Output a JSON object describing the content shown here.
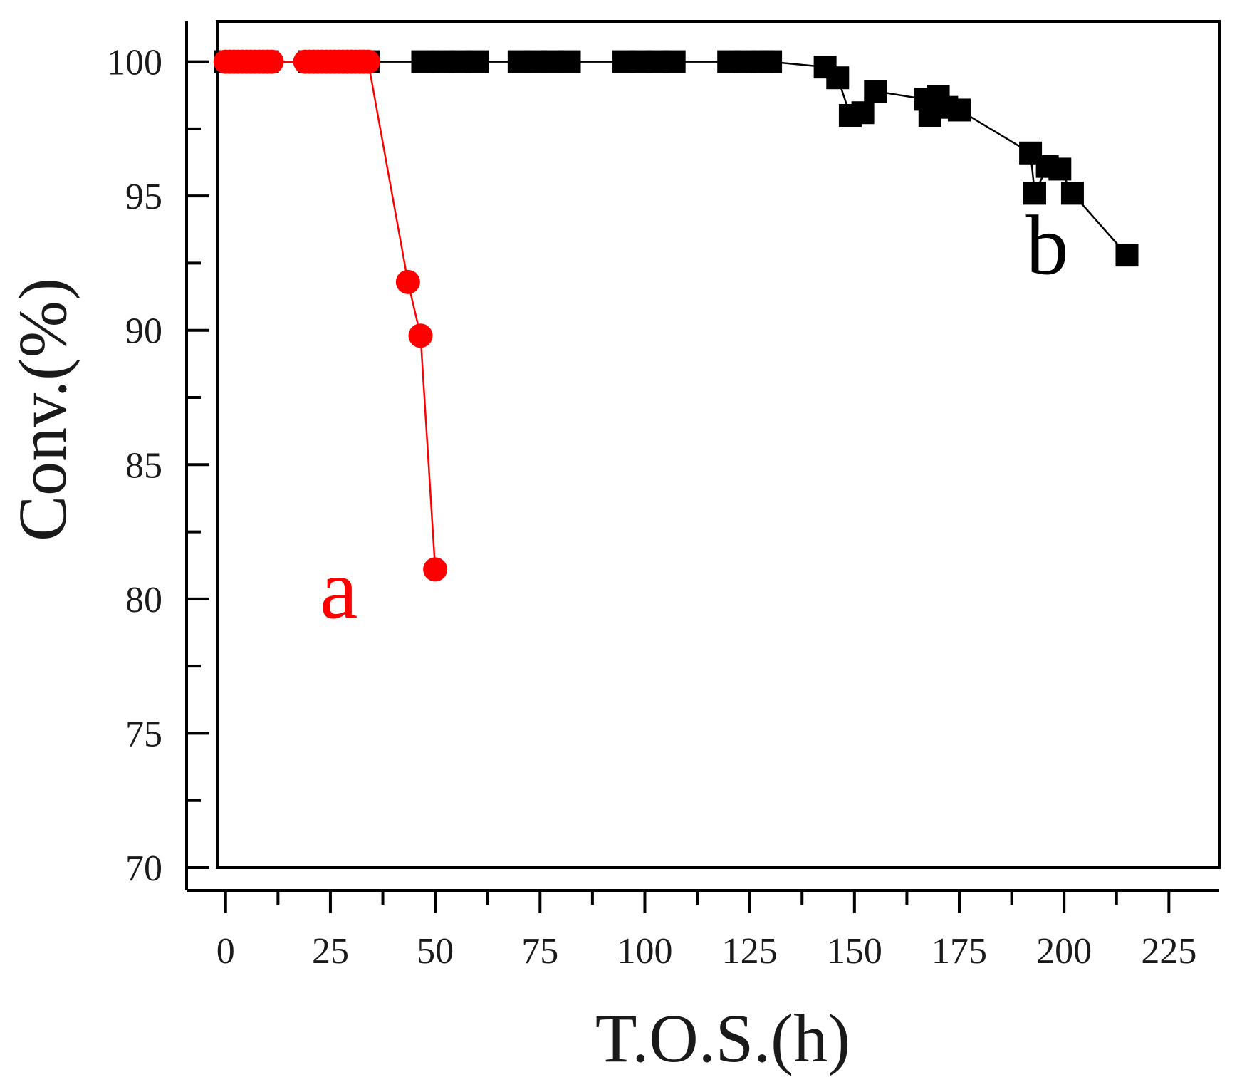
{
  "chart_data": {
    "type": "scatter",
    "xlabel": "T.O.S.(h)",
    "ylabel": "Conv.(%)",
    "xlim": [
      -2,
      237
    ],
    "ylim": [
      70,
      101.5
    ],
    "xticks": [
      0,
      25,
      50,
      75,
      100,
      125,
      150,
      175,
      200,
      225
    ],
    "xtick_labels": [
      "0",
      "25",
      "50",
      "75",
      "100",
      "125",
      "150",
      "175",
      "200",
      "225"
    ],
    "yticks": [
      70,
      75,
      80,
      85,
      90,
      95,
      100
    ],
    "ytick_labels": [
      "70",
      "75",
      "80",
      "85",
      "90",
      "95",
      "100"
    ],
    "grid": false,
    "series": [
      {
        "name": "b",
        "color": "#000000",
        "marker": "square",
        "line": "solid",
        "points": [
          [
            0,
            100
          ],
          [
            2,
            100
          ],
          [
            4,
            100
          ],
          [
            6,
            100
          ],
          [
            8,
            100
          ],
          [
            10,
            100
          ],
          [
            20,
            100
          ],
          [
            22,
            100
          ],
          [
            24,
            100
          ],
          [
            26,
            100
          ],
          [
            28,
            100
          ],
          [
            30,
            100
          ],
          [
            32,
            100
          ],
          [
            34,
            100
          ],
          [
            47,
            100
          ],
          [
            52,
            100
          ],
          [
            56,
            100
          ],
          [
            60,
            100
          ],
          [
            70,
            100
          ],
          [
            74,
            100
          ],
          [
            78,
            100
          ],
          [
            82,
            100
          ],
          [
            95,
            100
          ],
          [
            99,
            100
          ],
          [
            103,
            100
          ],
          [
            107,
            100
          ],
          [
            120,
            100
          ],
          [
            124,
            100
          ],
          [
            128,
            100
          ],
          [
            130,
            100
          ],
          [
            143,
            99.8
          ],
          [
            146,
            99.4
          ],
          [
            149,
            98
          ],
          [
            152,
            98.1
          ],
          [
            155,
            98.9
          ],
          [
            167,
            98.6
          ],
          [
            168,
            98
          ],
          [
            170,
            98.7
          ],
          [
            172,
            98.3
          ],
          [
            175,
            98.2
          ],
          [
            192,
            96.6
          ],
          [
            193,
            95.1
          ],
          [
            196,
            96.1
          ],
          [
            199,
            96
          ],
          [
            202,
            95.1
          ],
          [
            215,
            92.8
          ]
        ]
      },
      {
        "name": "a",
        "color": "#ff0000",
        "marker": "circle",
        "line": "solid",
        "points": [
          [
            0,
            100
          ],
          [
            1,
            100
          ],
          [
            2,
            100
          ],
          [
            3,
            100
          ],
          [
            4,
            100
          ],
          [
            5,
            100
          ],
          [
            6,
            100
          ],
          [
            7,
            100
          ],
          [
            8,
            100
          ],
          [
            9,
            100
          ],
          [
            10,
            100
          ],
          [
            11,
            100
          ],
          [
            19,
            100
          ],
          [
            20,
            100
          ],
          [
            21,
            100
          ],
          [
            22,
            100
          ],
          [
            23,
            100
          ],
          [
            24,
            100
          ],
          [
            25,
            100
          ],
          [
            26,
            100
          ],
          [
            27,
            100
          ],
          [
            28,
            100
          ],
          [
            29,
            100
          ],
          [
            30,
            100
          ],
          [
            31,
            100
          ],
          [
            32,
            100
          ],
          [
            33,
            100
          ],
          [
            34,
            100
          ],
          [
            43.5,
            91.8
          ],
          [
            46.5,
            89.8
          ],
          [
            50,
            81.1
          ]
        ]
      }
    ],
    "annotations": [
      {
        "text": "a",
        "x": 27,
        "y": 79.3,
        "color": "#ff0000"
      },
      {
        "text": "b",
        "x": 196,
        "y": 92.1,
        "color": "#000000"
      }
    ]
  }
}
